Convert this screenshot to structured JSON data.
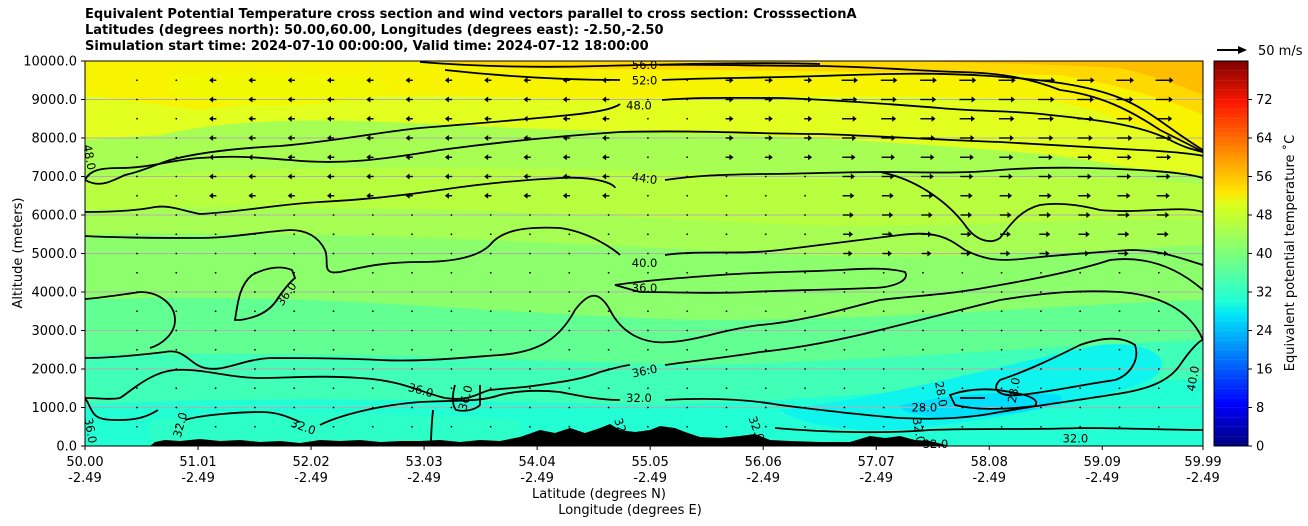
{
  "title": {
    "line1": "Equivalent Potential Temperature cross section and wind vectors parallel to cross section: CrosssectionA",
    "line2": "Latitudes (degrees north): 50.00,60.00, Longitudes (degrees east): -2.50,-2.50",
    "line3": "Simulation start time: 2024-07-10 00:00:00, Valid time: 2024-07-12 18:00:00"
  },
  "chart_data": {
    "type": "heatmap",
    "subtype": "filled contour with contour lines and wind vectors",
    "xlabel": "Latitude (degrees N)",
    "xlabel2": "Longitude (degrees E)",
    "ylabel": "Altitude (meters)",
    "x_ticks_lat": [
      "50.00",
      "51.01",
      "52.02",
      "53.03",
      "54.04",
      "55.05",
      "56.06",
      "57.07",
      "58.08",
      "59.09",
      "59.99"
    ],
    "x_ticks_lon": [
      "-2.49",
      "-2.49",
      "-2.49",
      "-2.49",
      "-2.49",
      "-2.49",
      "-2.49",
      "-2.49",
      "-2.49",
      "-2.49",
      "-2.49"
    ],
    "x_tick_values": [
      50.0,
      51.01,
      52.02,
      53.03,
      54.04,
      55.05,
      56.06,
      57.07,
      58.08,
      59.09,
      59.99
    ],
    "xlim": [
      50.0,
      59.99
    ],
    "y_ticks": [
      "0.0",
      "1000.0",
      "2000.0",
      "3000.0",
      "4000.0",
      "5000.0",
      "6000.0",
      "7000.0",
      "8000.0",
      "9000.0",
      "10000.0"
    ],
    "y_tick_values": [
      0,
      1000,
      2000,
      3000,
      4000,
      5000,
      6000,
      7000,
      8000,
      9000,
      10000
    ],
    "ylim": [
      0,
      10000
    ],
    "grid": "horizontal lines at y ticks",
    "colorbar": {
      "label": "Equivalent potential temperature ˚C",
      "min": 0,
      "max": 80,
      "step": 2,
      "ticks": [
        "0",
        "8",
        "16",
        "24",
        "32",
        "40",
        "48",
        "56",
        "64",
        "72"
      ],
      "tick_values": [
        0,
        8,
        16,
        24,
        32,
        40,
        48,
        56,
        64,
        72
      ],
      "colormap": "jet"
    },
    "wind_key": {
      "label": "50 m/s",
      "speed": 50
    },
    "contour_levels": [
      28,
      32,
      36,
      40,
      44,
      48,
      52,
      56
    ],
    "contour_labels": [
      {
        "text": "56.0",
        "x": 55.0,
        "y": 9900,
        "rot": 0
      },
      {
        "text": "52.0",
        "x": 55.0,
        "y": 9500,
        "rot": 0
      },
      {
        "text": "48.0",
        "x": 54.95,
        "y": 8850,
        "rot": 0
      },
      {
        "text": "44.0",
        "x": 55.0,
        "y": 6950,
        "rot": 8
      },
      {
        "text": "40.0",
        "x": 55.0,
        "y": 4750,
        "rot": 0
      },
      {
        "text": "36.0",
        "x": 55.0,
        "y": 4100,
        "rot": 0
      },
      {
        "text": "36.0",
        "x": 55.0,
        "y": 1950,
        "rot": -12
      },
      {
        "text": "32.0",
        "x": 54.95,
        "y": 1250,
        "rot": 0
      },
      {
        "text": "48.0",
        "x": 50.04,
        "y": 7500,
        "rot": 80
      },
      {
        "text": "36.0",
        "x": 51.8,
        "y": 3950,
        "rot": -55
      },
      {
        "text": "36.0",
        "x": 53.0,
        "y": 1450,
        "rot": 15
      },
      {
        "text": "36.0",
        "x": 53.4,
        "y": 1250,
        "rot": -75
      },
      {
        "text": "32.0",
        "x": 50.85,
        "y": 550,
        "rot": -75
      },
      {
        "text": "32.0",
        "x": 51.95,
        "y": 500,
        "rot": 20
      },
      {
        "text": "36.0",
        "x": 50.05,
        "y": 400,
        "rot": 80
      },
      {
        "text": "32.0",
        "x": 56.0,
        "y": 450,
        "rot": 70
      },
      {
        "text": "28.0",
        "x": 57.5,
        "y": 1000,
        "rot": 0
      },
      {
        "text": "28.0",
        "x": 57.65,
        "y": 1350,
        "rot": 80
      },
      {
        "text": "28.0",
        "x": 58.3,
        "y": 1450,
        "rot": -80
      },
      {
        "text": "32.0",
        "x": 57.45,
        "y": 400,
        "rot": 80
      },
      {
        "text": "32.0",
        "x": 57.6,
        "y": 50,
        "rot": 0
      },
      {
        "text": "32.0",
        "x": 58.85,
        "y": 200,
        "rot": 0
      },
      {
        "text": "40.0",
        "x": 59.9,
        "y": 1750,
        "rot": -80
      },
      {
        "text": "32.0",
        "x": 54.8,
        "y": 400,
        "rot": 70
      }
    ],
    "field_regions": [
      {
        "value": 44,
        "note": "background mid levels"
      },
      {
        "value": 50,
        "note": "upper band 8000-9500 m"
      },
      {
        "value": 54,
        "note": "top band near 10000 m, north"
      },
      {
        "value": 37,
        "note": "3000-4500 m zone"
      },
      {
        "value": 34,
        "note": "1000-3000 m zone"
      },
      {
        "value": 30,
        "note": "near-surface cold pool 56.5-59.5"
      }
    ],
    "wind_vectors": "rows at 500 m intervals; weak southward arrows south of 55 N aloft; strong northward arrows 5000-10000 m north of 56.5 N"
  }
}
